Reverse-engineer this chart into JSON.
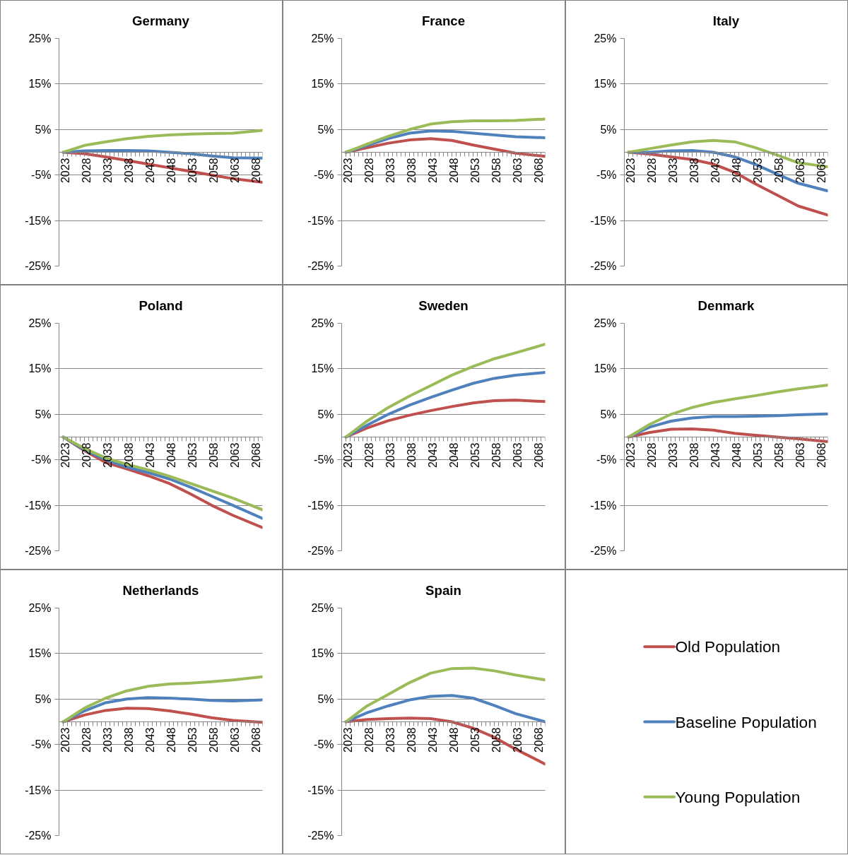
{
  "chart_data": [
    {
      "type": "line",
      "title": "Germany",
      "x": [
        2023,
        2028,
        2033,
        2038,
        2043,
        2048,
        2053,
        2058,
        2063,
        2070
      ],
      "xlim": [
        2022,
        2070
      ],
      "xticks": [
        2023,
        2028,
        2033,
        2038,
        2043,
        2048,
        2053,
        2058,
        2063,
        2068
      ],
      "ylim": [
        -25,
        25
      ],
      "yticks": [
        {
          "value": -25,
          "label": "-25%"
        },
        {
          "value": -15,
          "label": "-15%"
        },
        {
          "value": -5,
          "label": "-5%"
        },
        {
          "value": 5,
          "label": "5%"
        },
        {
          "value": 15,
          "label": "15%"
        },
        {
          "value": 25,
          "label": "25%"
        }
      ],
      "grid": "y",
      "legend": false,
      "series": [
        {
          "color": "#c0504d",
          "values": [
            0,
            -0.3,
            -1.0,
            -1.8,
            -2.6,
            -3.4,
            -4.2,
            -5.0,
            -5.8,
            -6.6
          ]
        },
        {
          "color": "#4f81bd",
          "values": [
            0,
            0.3,
            0.4,
            0.4,
            0.3,
            0,
            -0.3,
            -0.8,
            -1.2,
            -1.3
          ]
        },
        {
          "color": "#9bbb59",
          "values": [
            0,
            1.5,
            2.3,
            3.0,
            3.5,
            3.8,
            4.0,
            4.1,
            4.2,
            4.8
          ]
        }
      ]
    },
    {
      "type": "line",
      "title": "France",
      "x": [
        2023,
        2028,
        2033,
        2038,
        2043,
        2048,
        2053,
        2058,
        2063,
        2070
      ],
      "xlim": [
        2022,
        2070
      ],
      "xticks": [
        2023,
        2028,
        2033,
        2038,
        2043,
        2048,
        2053,
        2058,
        2063,
        2068
      ],
      "ylim": [
        -25,
        25
      ],
      "yticks": [
        {
          "value": -25,
          "label": "-25%"
        },
        {
          "value": -15,
          "label": "-15%"
        },
        {
          "value": -5,
          "label": "-5%"
        },
        {
          "value": 5,
          "label": "5%"
        },
        {
          "value": 15,
          "label": "15%"
        },
        {
          "value": 25,
          "label": "25%"
        }
      ],
      "grid": "y",
      "legend": false,
      "series": [
        {
          "color": "#c0504d",
          "values": [
            0,
            1.0,
            2.0,
            2.7,
            3.0,
            2.6,
            1.6,
            0.7,
            -0.2,
            -0.9
          ]
        },
        {
          "color": "#4f81bd",
          "values": [
            0,
            1.5,
            3.0,
            4.2,
            4.7,
            4.6,
            4.2,
            3.8,
            3.4,
            3.2
          ]
        },
        {
          "color": "#9bbb59",
          "values": [
            0,
            1.8,
            3.5,
            5.0,
            6.2,
            6.7,
            6.9,
            6.9,
            7.0,
            7.3
          ]
        }
      ]
    },
    {
      "type": "line",
      "title": "Italy",
      "x": [
        2023,
        2028,
        2033,
        2038,
        2043,
        2048,
        2053,
        2058,
        2063,
        2070
      ],
      "xlim": [
        2022,
        2070
      ],
      "xticks": [
        2023,
        2028,
        2033,
        2038,
        2043,
        2048,
        2053,
        2058,
        2063,
        2068
      ],
      "ylim": [
        -25,
        25
      ],
      "yticks": [
        {
          "value": -25,
          "label": "-25%"
        },
        {
          "value": -15,
          "label": "-15%"
        },
        {
          "value": -5,
          "label": "-5%"
        },
        {
          "value": 5,
          "label": "5%"
        },
        {
          "value": 15,
          "label": "15%"
        },
        {
          "value": 25,
          "label": "25%"
        }
      ],
      "grid": "y",
      "legend": false,
      "series": [
        {
          "color": "#c0504d",
          "values": [
            0,
            -0.4,
            -1.0,
            -1.6,
            -2.6,
            -4.4,
            -7.0,
            -9.4,
            -11.8,
            -13.8
          ]
        },
        {
          "color": "#4f81bd",
          "values": [
            0,
            0,
            0.3,
            0.4,
            0,
            -1.0,
            -2.7,
            -4.8,
            -6.8,
            -8.5
          ]
        },
        {
          "color": "#9bbb59",
          "values": [
            0,
            0.8,
            1.6,
            2.3,
            2.6,
            2.3,
            1.0,
            -0.6,
            -2.3,
            -3.2
          ]
        }
      ]
    },
    {
      "type": "line",
      "title": "Poland",
      "x": [
        2023,
        2028,
        2033,
        2038,
        2043,
        2048,
        2053,
        2058,
        2063,
        2070
      ],
      "xlim": [
        2022,
        2070
      ],
      "xticks": [
        2023,
        2028,
        2033,
        2038,
        2043,
        2048,
        2053,
        2058,
        2063,
        2068
      ],
      "ylim": [
        -25,
        25
      ],
      "yticks": [
        {
          "value": -25,
          "label": "-25%"
        },
        {
          "value": -15,
          "label": "-15%"
        },
        {
          "value": -5,
          "label": "-5%"
        },
        {
          "value": 5,
          "label": "5%"
        },
        {
          "value": 15,
          "label": "15%"
        },
        {
          "value": 25,
          "label": "25%"
        }
      ],
      "grid": "y",
      "legend": false,
      "series": [
        {
          "color": "#c0504d",
          "values": [
            0,
            -3.0,
            -5.6,
            -7.0,
            -8.5,
            -10.2,
            -12.5,
            -15.0,
            -17.2,
            -19.9
          ]
        },
        {
          "color": "#4f81bd",
          "values": [
            0,
            -2.8,
            -5.0,
            -6.6,
            -7.8,
            -9.2,
            -11.0,
            -13.0,
            -15.0,
            -17.9
          ]
        },
        {
          "color": "#9bbb59",
          "values": [
            0,
            -2.5,
            -4.6,
            -6.0,
            -7.2,
            -8.6,
            -10.2,
            -11.8,
            -13.4,
            -16.0
          ]
        }
      ]
    },
    {
      "type": "line",
      "title": "Sweden",
      "x": [
        2023,
        2028,
        2033,
        2038,
        2043,
        2048,
        2053,
        2058,
        2063,
        2070
      ],
      "xlim": [
        2022,
        2070
      ],
      "xticks": [
        2023,
        2028,
        2033,
        2038,
        2043,
        2048,
        2053,
        2058,
        2063,
        2068
      ],
      "ylim": [
        -25,
        25
      ],
      "yticks": [
        {
          "value": -25,
          "label": "-25%"
        },
        {
          "value": -15,
          "label": "-15%"
        },
        {
          "value": -5,
          "label": "-5%"
        },
        {
          "value": 5,
          "label": "5%"
        },
        {
          "value": 15,
          "label": "15%"
        },
        {
          "value": 25,
          "label": "25%"
        }
      ],
      "grid": "y",
      "legend": false,
      "series": [
        {
          "color": "#c0504d",
          "values": [
            0,
            2.0,
            3.6,
            4.8,
            5.8,
            6.7,
            7.5,
            8.0,
            8.1,
            7.8
          ]
        },
        {
          "color": "#4f81bd",
          "values": [
            0,
            2.6,
            5.0,
            7.0,
            8.7,
            10.3,
            11.8,
            12.9,
            13.6,
            14.2
          ]
        },
        {
          "color": "#9bbb59",
          "values": [
            0,
            3.5,
            6.5,
            9.0,
            11.3,
            13.6,
            15.5,
            17.2,
            18.5,
            20.4
          ]
        }
      ]
    },
    {
      "type": "line",
      "title": "Denmark",
      "x": [
        2023,
        2028,
        2033,
        2038,
        2043,
        2048,
        2053,
        2058,
        2063,
        2070
      ],
      "xlim": [
        2022,
        2070
      ],
      "xticks": [
        2023,
        2028,
        2033,
        2038,
        2043,
        2048,
        2053,
        2058,
        2063,
        2068
      ],
      "ylim": [
        -25,
        25
      ],
      "yticks": [
        {
          "value": -25,
          "label": "-25%"
        },
        {
          "value": -15,
          "label": "-15%"
        },
        {
          "value": -5,
          "label": "-5%"
        },
        {
          "value": 5,
          "label": "5%"
        },
        {
          "value": 15,
          "label": "15%"
        },
        {
          "value": 25,
          "label": "25%"
        }
      ],
      "grid": "y",
      "legend": false,
      "series": [
        {
          "color": "#c0504d",
          "values": [
            0,
            1.0,
            1.7,
            1.8,
            1.5,
            0.8,
            0.4,
            0,
            -0.4,
            -1.0
          ]
        },
        {
          "color": "#4f81bd",
          "values": [
            0,
            2.2,
            3.5,
            4.2,
            4.5,
            4.5,
            4.6,
            4.7,
            4.9,
            5.1
          ]
        },
        {
          "color": "#9bbb59",
          "values": [
            0,
            2.8,
            5.0,
            6.5,
            7.6,
            8.4,
            9.1,
            9.9,
            10.6,
            11.4
          ]
        }
      ]
    },
    {
      "type": "line",
      "title": "Netherlands",
      "x": [
        2023,
        2028,
        2033,
        2038,
        2043,
        2048,
        2053,
        2058,
        2063,
        2070
      ],
      "xlim": [
        2022,
        2070
      ],
      "xticks": [
        2023,
        2028,
        2033,
        2038,
        2043,
        2048,
        2053,
        2058,
        2063,
        2068
      ],
      "ylim": [
        -25,
        25
      ],
      "yticks": [
        {
          "value": -25,
          "label": "-25%"
        },
        {
          "value": -15,
          "label": "-15%"
        },
        {
          "value": -5,
          "label": "-5%"
        },
        {
          "value": 5,
          "label": "5%"
        },
        {
          "value": 15,
          "label": "15%"
        },
        {
          "value": 25,
          "label": "25%"
        }
      ],
      "grid": "y",
      "legend": false,
      "series": [
        {
          "color": "#c0504d",
          "values": [
            0,
            1.5,
            2.5,
            3.0,
            2.9,
            2.4,
            1.7,
            0.9,
            0.3,
            -0.1
          ]
        },
        {
          "color": "#4f81bd",
          "values": [
            0,
            2.4,
            4.2,
            5.0,
            5.3,
            5.2,
            5.0,
            4.7,
            4.6,
            4.8
          ]
        },
        {
          "color": "#9bbb59",
          "values": [
            0,
            3.0,
            5.2,
            6.8,
            7.8,
            8.3,
            8.5,
            8.8,
            9.2,
            9.9
          ]
        }
      ]
    },
    {
      "type": "line",
      "title": "Spain",
      "x": [
        2023,
        2028,
        2033,
        2038,
        2043,
        2048,
        2053,
        2058,
        2063,
        2070
      ],
      "xlim": [
        2022,
        2070
      ],
      "xticks": [
        2023,
        2028,
        2033,
        2038,
        2043,
        2048,
        2053,
        2058,
        2063,
        2068
      ],
      "ylim": [
        -25,
        25
      ],
      "yticks": [
        {
          "value": -25,
          "label": "-25%"
        },
        {
          "value": -15,
          "label": "-15%"
        },
        {
          "value": -5,
          "label": "-5%"
        },
        {
          "value": 5,
          "label": "5%"
        },
        {
          "value": 15,
          "label": "15%"
        },
        {
          "value": 25,
          "label": "25%"
        }
      ],
      "grid": "y",
      "legend": "right",
      "series": [
        {
          "name": "Old Population",
          "color": "#c0504d",
          "values": [
            0,
            0.5,
            0.7,
            0.8,
            0.7,
            0.0,
            -1.4,
            -3.4,
            -6.0,
            -9.3
          ]
        },
        {
          "name": "Baseline Population",
          "color": "#4f81bd",
          "values": [
            0,
            2.0,
            3.5,
            4.8,
            5.6,
            5.8,
            5.2,
            3.6,
            1.8,
            0
          ]
        },
        {
          "name": "Young Population",
          "color": "#9bbb59",
          "values": [
            0,
            3.5,
            6.0,
            8.6,
            10.7,
            11.7,
            11.8,
            11.2,
            10.3,
            9.2
          ]
        }
      ]
    }
  ]
}
